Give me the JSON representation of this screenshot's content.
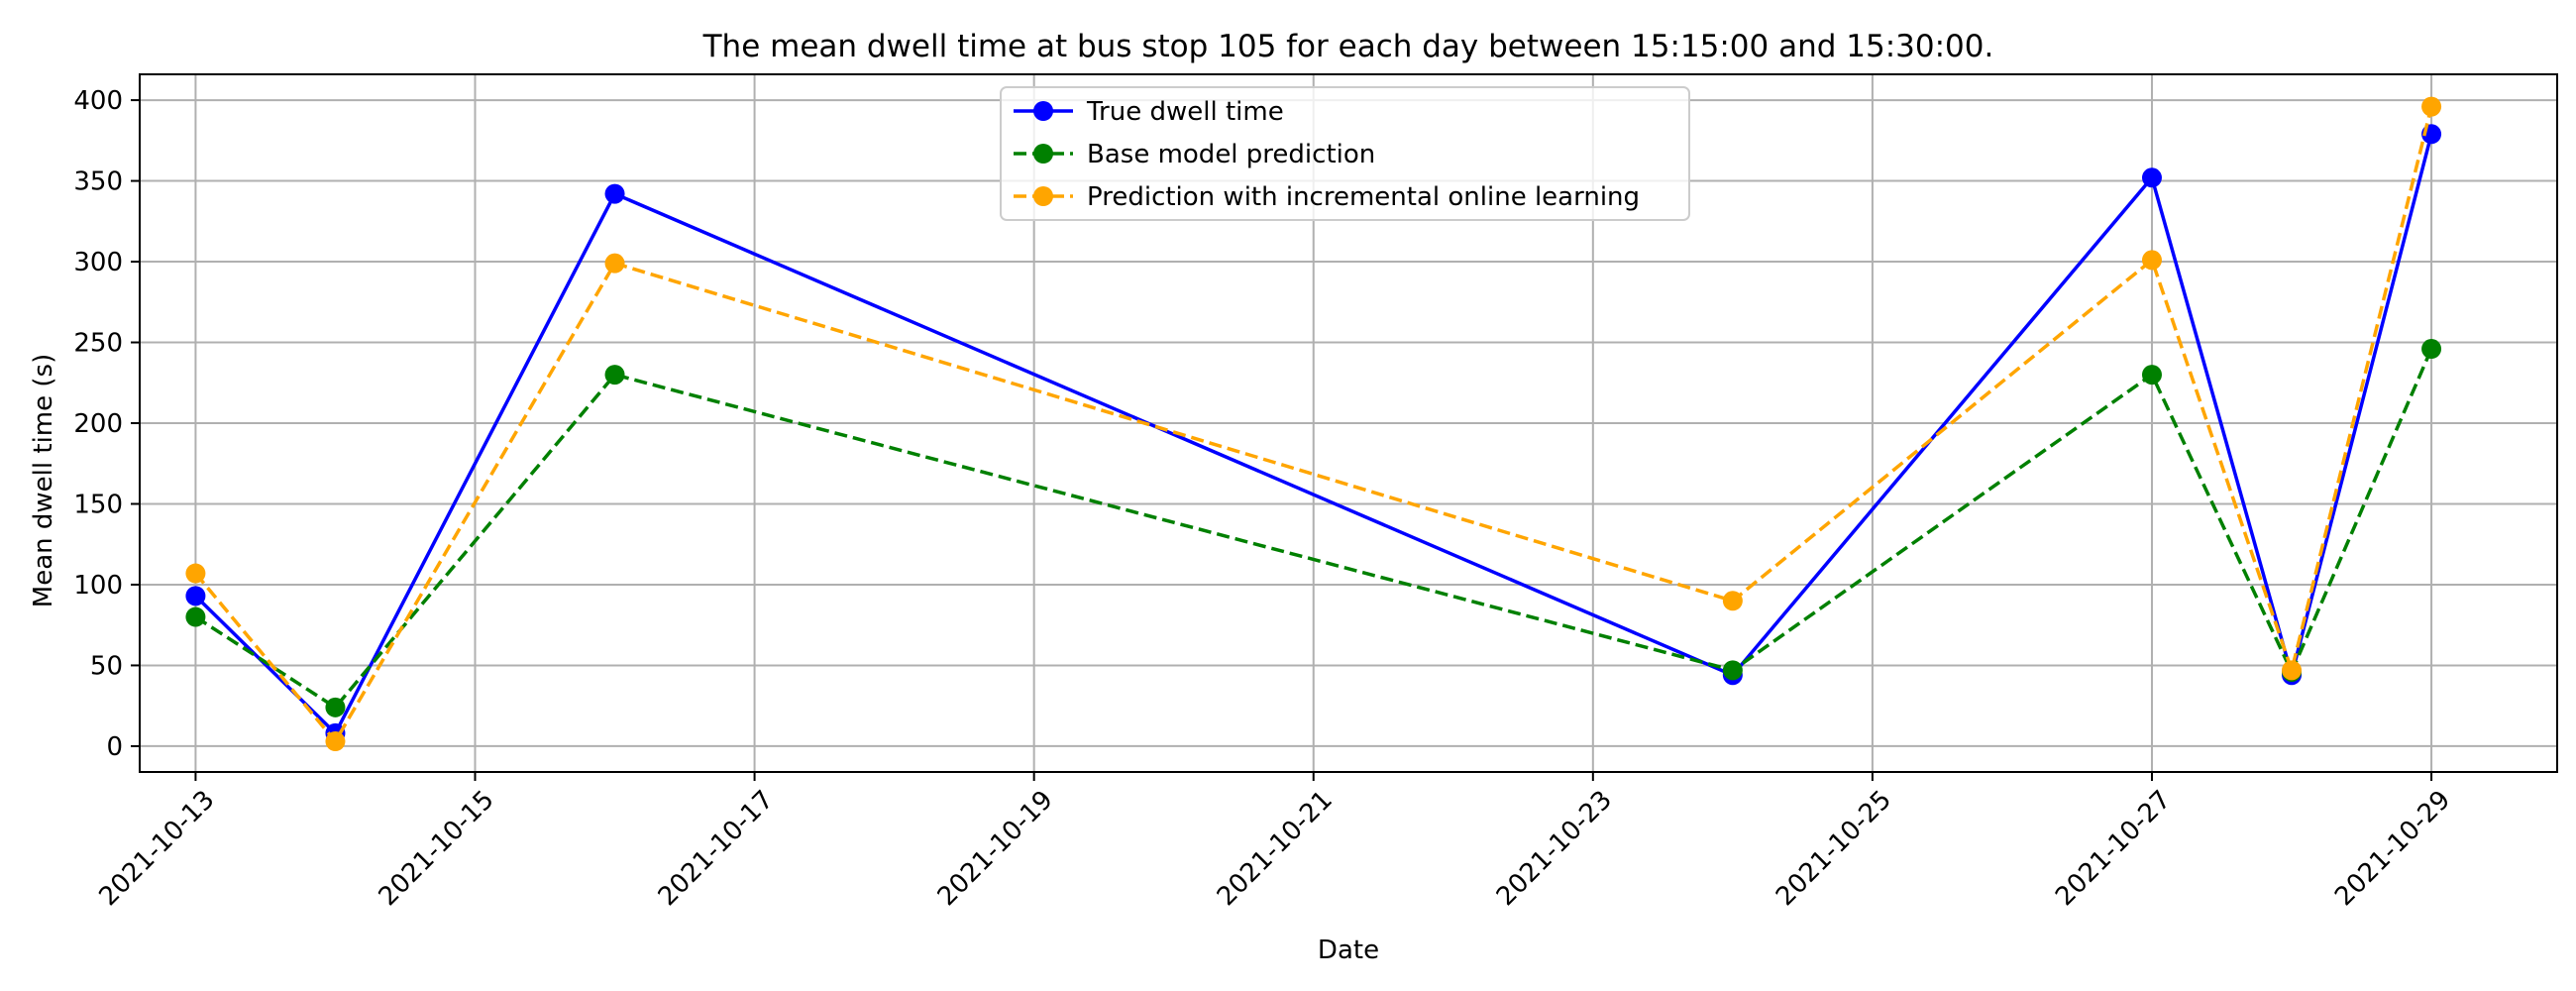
{
  "chart_data": {
    "type": "line",
    "title": "The mean dwell time at bus stop 105 for each day between 15:15:00 and 15:30:00.",
    "xlabel": "Date",
    "ylabel": "Mean dwell time (s)",
    "x": [
      "2021-10-13",
      "2021-10-14",
      "2021-10-16",
      "2021-10-24",
      "2021-10-27",
      "2021-10-28",
      "2021-10-29"
    ],
    "series": [
      {
        "name": "True dwell time",
        "values": [
          93,
          8,
          342,
          44,
          352,
          44,
          379
        ],
        "color": "#0000ff",
        "dashed": false
      },
      {
        "name": "Base model prediction",
        "values": [
          80,
          24,
          230,
          47,
          230,
          46,
          246
        ],
        "color": "#008000",
        "dashed": true
      },
      {
        "name": "Prediction with incremental online learning",
        "values": [
          107,
          3,
          299,
          90,
          301,
          47,
          396
        ],
        "color": "#ffa500",
        "dashed": true
      }
    ],
    "xlim": [
      "2021-10-12 14:24",
      "2021-10-29 21:36"
    ],
    "ylim": [
      -16,
      416
    ],
    "yticks": [
      0,
      50,
      100,
      150,
      200,
      250,
      300,
      350,
      400
    ],
    "xticks": [
      "2021-10-13",
      "2021-10-15",
      "2021-10-17",
      "2021-10-19",
      "2021-10-21",
      "2021-10-23",
      "2021-10-25",
      "2021-10-27",
      "2021-10-29"
    ],
    "grid": true,
    "legend_position": "top-center"
  }
}
